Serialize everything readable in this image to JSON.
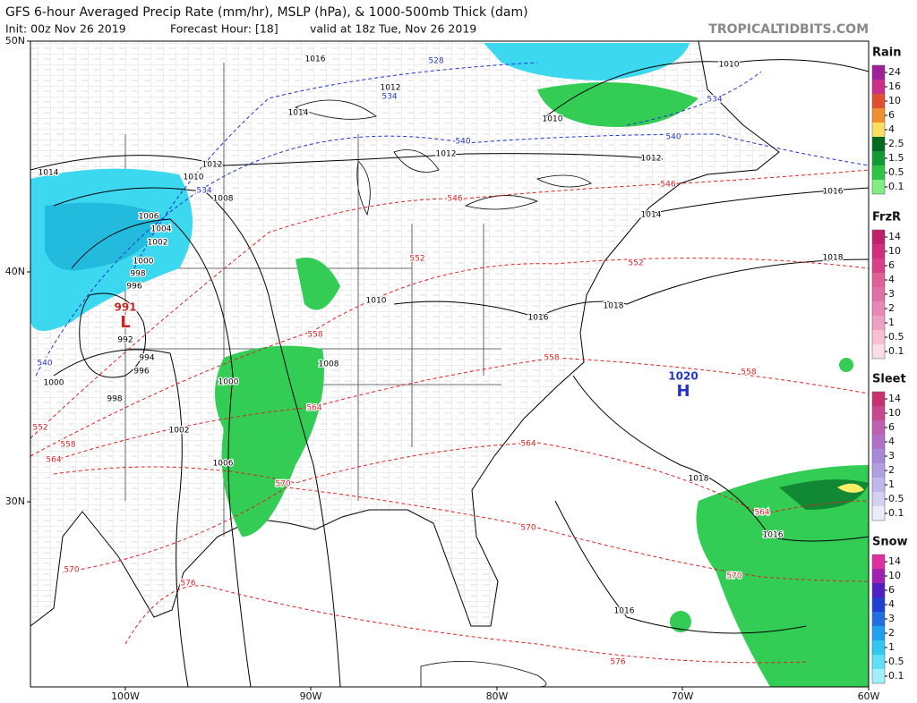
{
  "header": {
    "title": "GFS 6-hour Averaged Precip Rate (mm/hr), MSLP (hPa), & 1000-500mb Thick (dam)",
    "init": "Init: 00z Nov 26 2019",
    "forecast_hour": "Forecast Hour: [18]",
    "valid": "valid at 18z Tue, Nov 26 2019",
    "site": "TROPICALTIDBITS.COM"
  },
  "axes": {
    "latitude": [
      "50N",
      "40N",
      "30N"
    ],
    "longitude": [
      "100W",
      "90W",
      "80W",
      "70W",
      "60W"
    ]
  },
  "isobar_labels": [
    "1016",
    "1012",
    "1014",
    "1012",
    "1010",
    "1008",
    "1006",
    "1004",
    "1002",
    "1000",
    "998",
    "996",
    "992",
    "994",
    "996",
    "1000",
    "998",
    "1000",
    "1002",
    "1006",
    "1008",
    "1010",
    "1012",
    "1012",
    "1010",
    "1010",
    "1014",
    "1016",
    "1014",
    "1018",
    "1018",
    "1016",
    "1018",
    "1016",
    "1016"
  ],
  "thickness_labels": [
    "528",
    "534",
    "540",
    "534",
    "540",
    "534",
    "540",
    "546",
    "546",
    "552",
    "552",
    "552",
    "558",
    "558",
    "558",
    "558",
    "564",
    "564",
    "564",
    "564",
    "570",
    "570",
    "570",
    "570",
    "576",
    "576"
  ],
  "pressure_centers": [
    {
      "value": "991",
      "symbol": "L"
    },
    {
      "value": "1020",
      "symbol": "H"
    }
  ],
  "legend": [
    {
      "title": "Rain",
      "ticks": [
        "24",
        "16",
        "10",
        "6",
        "4",
        "2.5",
        "1.5",
        "0.5",
        "0.1"
      ],
      "colors": [
        "#a0209a",
        "#c8308a",
        "#e05030",
        "#f09030",
        "#f8e060",
        "#006a20",
        "#129a35",
        "#2cc545",
        "#80ee80"
      ]
    },
    {
      "title": "FrzR",
      "ticks": [
        "14",
        "10",
        "6",
        "4",
        "3",
        "2",
        "1",
        "0.5",
        "0.1"
      ],
      "colors": [
        "#c0206a",
        "#d0307a",
        "#d8408a",
        "#e0609a",
        "#e070a8",
        "#e888b8",
        "#f0a0c4",
        "#f8c0d4",
        "#fbdde6"
      ]
    },
    {
      "title": "Sleet",
      "ticks": [
        "14",
        "10",
        "6",
        "4",
        "3",
        "2",
        "1",
        "0.5",
        "0.1"
      ],
      "colors": [
        "#c83070",
        "#c84890",
        "#c060b0",
        "#b070c8",
        "#a888d8",
        "#b0a0e0",
        "#c0b8ea",
        "#d4d0f2",
        "#ecebfa"
      ]
    },
    {
      "title": "Snow",
      "ticks": [
        "14",
        "10",
        "6",
        "4",
        "3",
        "2",
        "1",
        "0.5",
        "0.1"
      ],
      "colors": [
        "#e030a0",
        "#a020b0",
        "#5020c0",
        "#2040d0",
        "#2070e0",
        "#20a0f0",
        "#30c8f0",
        "#60e0f8",
        "#a0f0fc"
      ]
    }
  ]
}
